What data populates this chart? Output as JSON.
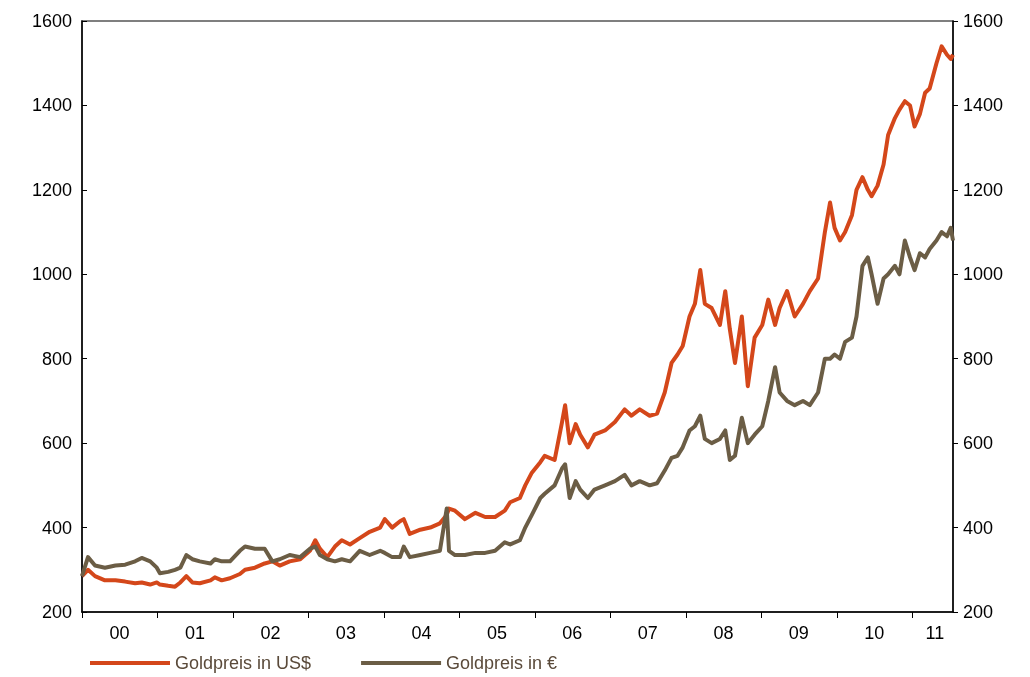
{
  "chart_data": {
    "type": "line",
    "xlim": [
      "2000-01-01",
      "2011-07-17"
    ],
    "xticks": [
      {
        "value": "2000-01-01",
        "label": null
      },
      {
        "value": "2000-07-01",
        "label": "00"
      },
      {
        "value": "2001-01-01",
        "label": null
      },
      {
        "value": "2001-07-01",
        "label": "01"
      },
      {
        "value": "2002-01-01",
        "label": null
      },
      {
        "value": "2002-07-01",
        "label": "02"
      },
      {
        "value": "2003-01-01",
        "label": null
      },
      {
        "value": "2003-07-01",
        "label": "03"
      },
      {
        "value": "2004-01-01",
        "label": null
      },
      {
        "value": "2004-07-01",
        "label": "04"
      },
      {
        "value": "2005-01-01",
        "label": null
      },
      {
        "value": "2005-07-01",
        "label": "05"
      },
      {
        "value": "2006-01-01",
        "label": null
      },
      {
        "value": "2006-07-01",
        "label": "06"
      },
      {
        "value": "2007-01-01",
        "label": null
      },
      {
        "value": "2007-07-01",
        "label": "07"
      },
      {
        "value": "2008-01-01",
        "label": null
      },
      {
        "value": "2008-07-01",
        "label": "08"
      },
      {
        "value": "2009-01-01",
        "label": null
      },
      {
        "value": "2009-07-01",
        "label": "09"
      },
      {
        "value": "2010-01-01",
        "label": null
      },
      {
        "value": "2010-07-01",
        "label": "10"
      },
      {
        "value": "2011-01-01",
        "label": null
      },
      {
        "value": "2011-04-20",
        "label": "11"
      }
    ],
    "ylim": [
      200,
      1600
    ],
    "yticks": [
      200,
      400,
      600,
      800,
      1000,
      1200,
      1400,
      1600
    ],
    "y2lim": [
      200,
      1600
    ],
    "y2ticks": [
      200,
      400,
      600,
      800,
      1000,
      1200,
      1400,
      1600
    ],
    "grid": false,
    "legend": "bottom left",
    "marker": "none",
    "line_style": "solid",
    "x": [
      "2000-01-01",
      "2000-01-30",
      "2000-03-04",
      "2000-04-21",
      "2000-06-11",
      "2000-07-28",
      "2000-09-14",
      "2000-10-16",
      "2000-11-26",
      "2000-12-28",
      "2001-01-12",
      "2001-02-21",
      "2001-03-26",
      "2001-04-21",
      "2001-05-20",
      "2001-06-18",
      "2001-07-24",
      "2001-09-14",
      "2001-10-05",
      "2001-11-07",
      "2001-12-17",
      "2002-02-03",
      "2002-02-28",
      "2002-04-17",
      "2002-06-03",
      "2002-07-10",
      "2002-08-15",
      "2002-10-02",
      "2002-11-22",
      "2003-01-08",
      "2003-02-03",
      "2003-02-25",
      "2003-04-02",
      "2003-05-09",
      "2003-06-11",
      "2003-07-21",
      "2003-09-06",
      "2003-10-24",
      "2003-12-14",
      "2004-01-05",
      "2004-02-10",
      "2004-03-19",
      "2004-04-06",
      "2004-05-05",
      "2004-06-25",
      "2004-08-12",
      "2004-09-28",
      "2004-10-31",
      "2004-11-11",
      "2004-12-10",
      "2005-01-27",
      "2005-03-19",
      "2005-05-05",
      "2005-06-22",
      "2005-08-08",
      "2005-09-03",
      "2005-10-20",
      "2005-11-15",
      "2005-12-17",
      "2006-01-27",
      "2006-02-17",
      "2006-04-06",
      "2006-05-12",
      "2006-05-27",
      "2006-06-18",
      "2006-07-17",
      "2006-08-08",
      "2006-09-14",
      "2006-10-16",
      "2006-12-06",
      "2007-01-23",
      "2007-03-11",
      "2007-04-13",
      "2007-05-23",
      "2007-07-10",
      "2007-08-15",
      "2007-09-21",
      "2007-10-24",
      "2007-11-22",
      "2007-12-17",
      "2008-01-19",
      "2008-02-14",
      "2008-03-11",
      "2008-04-02",
      "2008-05-05",
      "2008-06-14",
      "2008-07-10",
      "2008-08-01",
      "2008-08-26",
      "2008-09-28",
      "2008-10-27",
      "2008-11-29",
      "2009-01-05",
      "2009-02-03",
      "2009-03-08",
      "2009-03-30",
      "2009-05-05",
      "2009-06-11",
      "2009-07-21",
      "2009-08-23",
      "2009-10-02",
      "2009-11-04",
      "2009-11-29",
      "2009-12-21",
      "2010-01-16",
      "2010-02-10",
      "2010-03-15",
      "2010-04-06",
      "2010-05-05",
      "2010-05-31",
      "2010-06-18",
      "2010-07-17",
      "2010-08-15",
      "2010-09-06",
      "2010-10-09",
      "2010-10-31",
      "2010-11-26",
      "2010-12-21",
      "2011-01-12",
      "2011-02-07",
      "2011-03-04",
      "2011-03-26",
      "2011-04-28",
      "2011-05-23",
      "2011-06-18",
      "2011-07-06",
      "2011-07-17"
    ],
    "series": [
      {
        "name": "Goldpreis in US$",
        "color": "#d4471a",
        "values": [
          285,
          300,
          285,
          275,
          275,
          272,
          268,
          270,
          265,
          270,
          265,
          262,
          260,
          270,
          285,
          270,
          268,
          275,
          282,
          275,
          280,
          290,
          300,
          305,
          315,
          320,
          310,
          320,
          325,
          345,
          370,
          350,
          330,
          355,
          370,
          360,
          375,
          390,
          400,
          420,
          400,
          415,
          420,
          385,
          395,
          400,
          410,
          430,
          445,
          440,
          420,
          435,
          425,
          425,
          440,
          460,
          470,
          500,
          530,
          555,
          570,
          560,
          650,
          690,
          600,
          645,
          620,
          590,
          620,
          630,
          650,
          680,
          665,
          680,
          665,
          670,
          720,
          790,
          810,
          830,
          900,
          930,
          1010,
          930,
          920,
          880,
          960,
          870,
          790,
          900,
          735,
          850,
          880,
          940,
          880,
          920,
          960,
          900,
          930,
          960,
          990,
          1100,
          1170,
          1110,
          1080,
          1100,
          1140,
          1200,
          1230,
          1200,
          1185,
          1210,
          1260,
          1330,
          1370,
          1390,
          1410,
          1400,
          1350,
          1380,
          1430,
          1440,
          1500,
          1540,
          1520,
          1510,
          1520
        ]
      },
      {
        "name": "Goldpreis in €",
        "color": "#6b5d45",
        "values": [
          285,
          330,
          310,
          305,
          310,
          312,
          320,
          328,
          320,
          305,
          292,
          295,
          300,
          305,
          335,
          325,
          320,
          315,
          325,
          320,
          320,
          345,
          355,
          350,
          350,
          320,
          325,
          335,
          330,
          350,
          355,
          335,
          325,
          320,
          325,
          320,
          345,
          335,
          345,
          340,
          330,
          330,
          355,
          330,
          335,
          340,
          345,
          445,
          345,
          335,
          335,
          340,
          340,
          345,
          365,
          360,
          370,
          400,
          430,
          470,
          480,
          500,
          540,
          550,
          470,
          510,
          490,
          470,
          490,
          500,
          510,
          525,
          500,
          510,
          500,
          505,
          535,
          565,
          570,
          590,
          630,
          640,
          665,
          610,
          600,
          610,
          630,
          560,
          570,
          660,
          600,
          620,
          640,
          700,
          780,
          720,
          700,
          690,
          700,
          690,
          720,
          800,
          800,
          810,
          800,
          840,
          850,
          900,
          1020,
          1040,
          1000,
          930,
          990,
          1000,
          1020,
          1000,
          1080,
          1040,
          1010,
          1050,
          1040,
          1060,
          1080,
          1100,
          1090,
          1110,
          1080
        ]
      }
    ]
  }
}
